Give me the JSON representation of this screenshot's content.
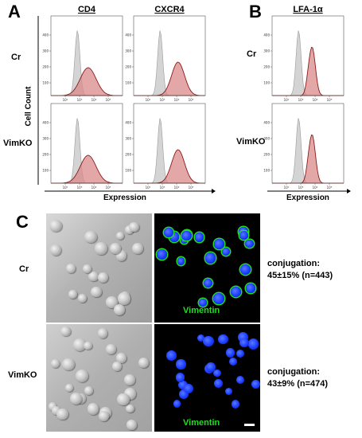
{
  "panels": {
    "A": {
      "letter": "A",
      "columns": [
        "CD4",
        "CXCR4"
      ],
      "rows": [
        "Cr",
        "VimKO"
      ],
      "y_axis_title": "Cell Count",
      "x_axis_title": "Expression",
      "y_ticks": [
        "100",
        "200",
        "300",
        "400"
      ],
      "x_ticks": [
        "10²",
        "10³",
        "10⁴",
        "10⁵"
      ]
    },
    "B": {
      "letter": "B",
      "columns": [
        "LFA-1α"
      ],
      "rows": [
        "Cr",
        "VimKO"
      ],
      "x_axis_title": "Expression",
      "y_ticks": [
        "100",
        "200",
        "300",
        "400"
      ],
      "x_ticks": [
        "10²",
        "10³",
        "10⁴",
        "10⁵"
      ]
    },
    "C": {
      "letter": "C",
      "rows": [
        "Cr",
        "VimKO"
      ],
      "stain_label": "Vimentin",
      "conjugation": [
        {
          "line1": "conjugation:",
          "line2": "45±15% (n=443)"
        },
        {
          "line1": "conjugation:",
          "line2": "43±9% (n=474)"
        }
      ]
    }
  },
  "colors": {
    "control_fill": "#d4d4d4",
    "control_line": "#9a9a9a",
    "stain_fill": "#d98a8a",
    "stain_line": "#8b1a1a",
    "vimentin": "#22dd22",
    "nuclei": "#1a3cff"
  }
}
